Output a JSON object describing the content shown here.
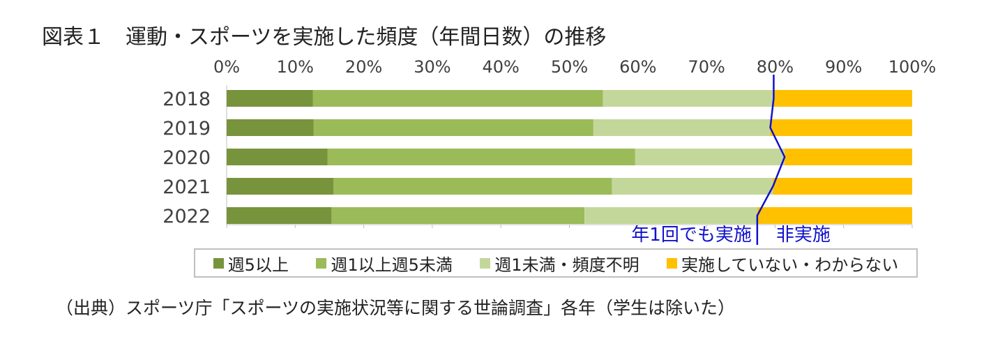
{
  "title": "図表１　運動・スポーツを実施した頻度（年間日数）の推移",
  "source": "（出典）スポーツ庁「スポーツの実施状況等に関する世論調査」各年（学生は除いた）",
  "chart_data": {
    "type": "bar",
    "orientation": "horizontal",
    "stacked": true,
    "percent_axis": true,
    "categories": [
      "2018",
      "2019",
      "2020",
      "2021",
      "2022"
    ],
    "x_ticks": [
      "0%",
      "10%",
      "20%",
      "30%",
      "40%",
      "50%",
      "60%",
      "70%",
      "80%",
      "90%",
      "100%"
    ],
    "xlim": [
      0,
      100
    ],
    "series": [
      {
        "name": "週5以上",
        "color": "#77933c",
        "values": [
          12.6,
          12.7,
          14.7,
          15.6,
          15.3
        ]
      },
      {
        "name": "週1以上週5未満",
        "color": "#9bbb59",
        "values": [
          42.3,
          40.8,
          44.9,
          40.6,
          36.9
        ]
      },
      {
        "name": "週1未満・頻度不明",
        "color": "#c4d79b",
        "values": [
          24.9,
          25.8,
          21.8,
          23.5,
          25.2
        ]
      },
      {
        "name": "実施していない・わからない",
        "color": "#ffc000",
        "values": [
          20.2,
          20.7,
          18.6,
          20.3,
          22.6
        ]
      }
    ],
    "legend_position": "bottom",
    "grid": false,
    "annotations": {
      "line_color": "#1111cc",
      "left_label": "年1回でも実施",
      "right_label": "非実施"
    }
  }
}
